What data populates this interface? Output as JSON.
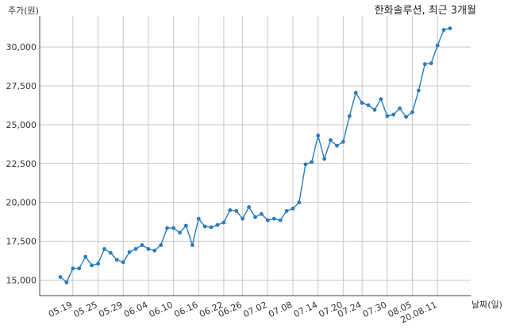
{
  "chart_data": {
    "type": "line",
    "title": "한화솔루션, 최근 3개월",
    "ylabel": "주가(원)",
    "xlabel": "날짜(일)",
    "ylim": [
      14000,
      32000
    ],
    "yticks": [
      15000,
      17500,
      20000,
      22500,
      25000,
      27500,
      30000
    ],
    "ytick_labels": [
      "15,000",
      "17,500",
      "20,000",
      "22,500",
      "25,000",
      "27,500",
      "30,000"
    ],
    "xtick_labels": [
      "05.19",
      "05.25",
      "05.29",
      "06.04",
      "06.10",
      "06.16",
      "06.22",
      "06.26",
      "07.02",
      "07.08",
      "07.14",
      "07.20",
      "07.24",
      "07.30",
      "08.05",
      "20.08.11"
    ],
    "xtick_indices": [
      2,
      6,
      10,
      14,
      18,
      22,
      26,
      29,
      33,
      37,
      41,
      45,
      48,
      52,
      56,
      60
    ],
    "grid": true,
    "line_color": "#2b7bb9",
    "series": [
      {
        "values": [
          15200,
          14850,
          15750,
          15750,
          16500,
          15950,
          16050,
          17000,
          16750,
          16300,
          16150,
          16800,
          17000,
          17250,
          17000,
          16900,
          17250,
          18350,
          18350,
          18050,
          18500,
          17250,
          18950,
          18450,
          18400,
          18550,
          18700,
          19500,
          19450,
          18950,
          19700,
          19050,
          19250,
          18850,
          18950,
          18850,
          19450,
          19600,
          20000,
          22450,
          22600,
          24300,
          22800,
          24000,
          23650,
          23900,
          25550,
          27050,
          26400,
          26250,
          25950,
          26650,
          25550,
          25650,
          26050,
          25500,
          25800,
          27200,
          28900,
          28950,
          30100,
          31100,
          31200
        ]
      }
    ]
  }
}
